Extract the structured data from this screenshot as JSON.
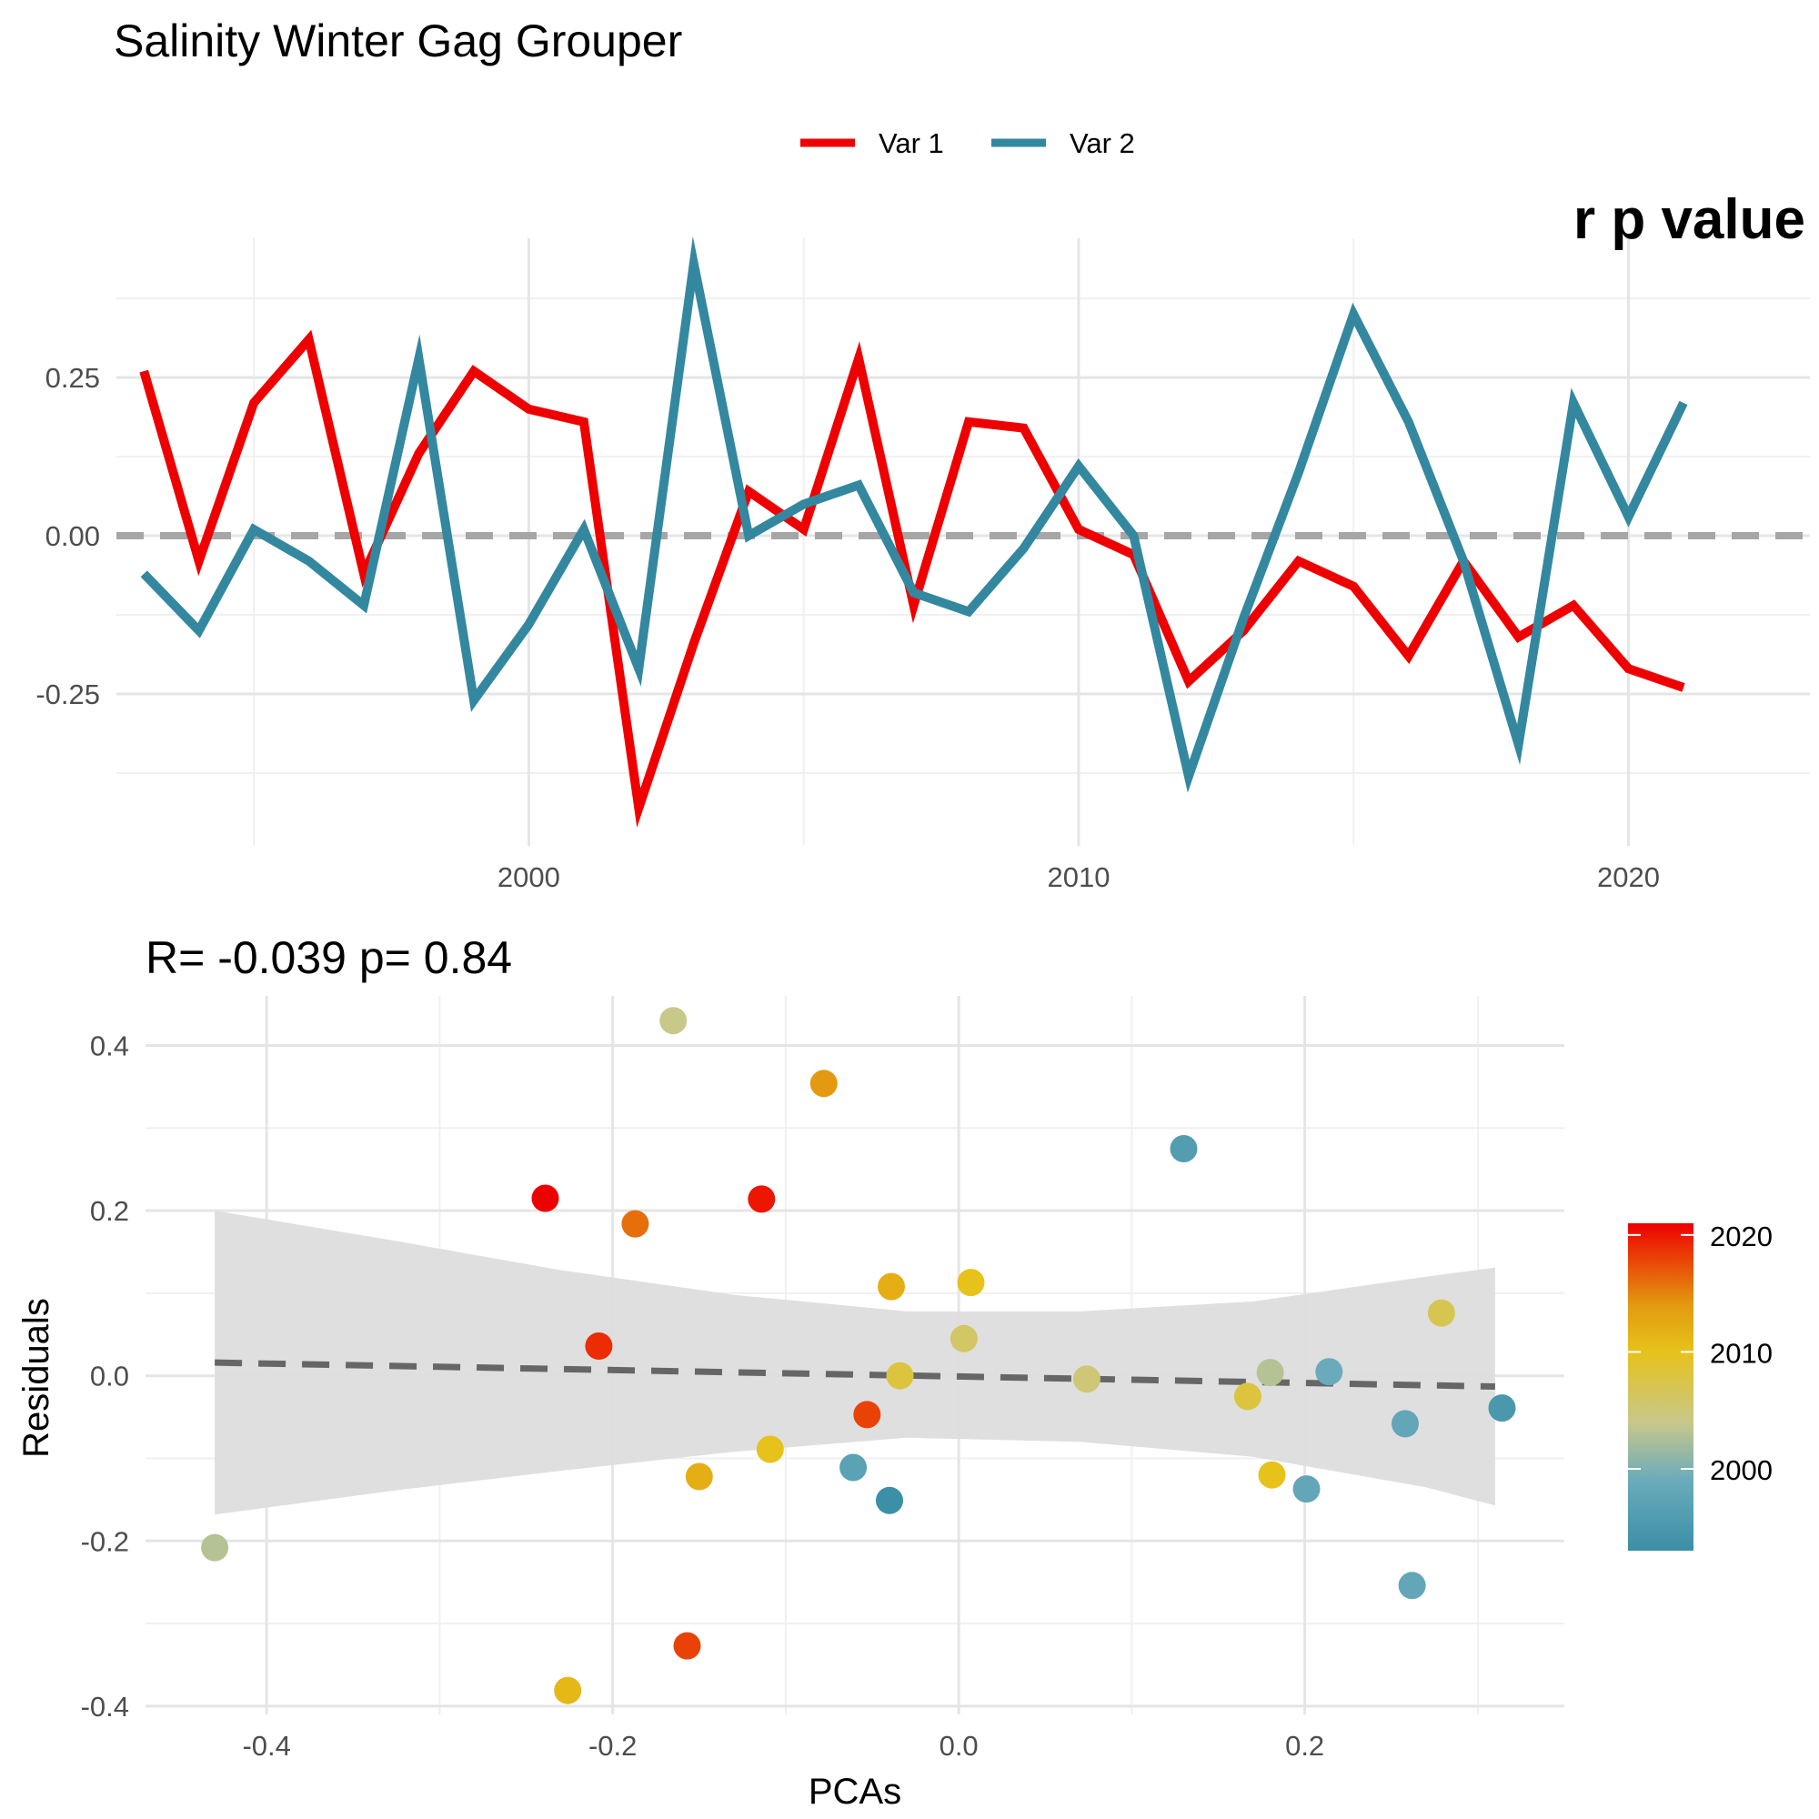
{
  "chart_data": [
    {
      "type": "line",
      "title": "Salinity Winter Gag Grouper",
      "corner_text": "r p value",
      "xlabel": "",
      "ylabel": "",
      "xlim": [
        1992.5,
        2023.3
      ],
      "ylim": [
        -0.49,
        0.47
      ],
      "x_ticks": [
        2000,
        2010,
        2020
      ],
      "x_tick_labels": [
        "2000",
        "2010",
        "2020"
      ],
      "y_ticks": [
        0.25,
        0.0,
        -0.25
      ],
      "y_tick_labels": [
        "0.25",
        "0.00",
        "-0.25"
      ],
      "grid": true,
      "legend_position": "top",
      "reference_line": {
        "y": 0,
        "style": "dashed",
        "color": "#a6a6a6"
      },
      "x": [
        1993,
        1994,
        1995,
        1996,
        1997,
        1998,
        1999,
        2000,
        2001,
        2002,
        2003,
        2004,
        2005,
        2006,
        2007,
        2008,
        2009,
        2010,
        2011,
        2012,
        2013,
        2014,
        2015,
        2016,
        2017,
        2018,
        2019,
        2020,
        2021
      ],
      "series": [
        {
          "name": "Var 1",
          "color": "#ee0000",
          "values": [
            0.26,
            -0.04,
            0.21,
            0.31,
            -0.06,
            0.13,
            0.26,
            0.2,
            0.18,
            -0.43,
            -0.17,
            0.07,
            0.01,
            0.28,
            -0.11,
            0.18,
            0.17,
            0.01,
            -0.03,
            -0.23,
            -0.15,
            -0.04,
            -0.08,
            -0.19,
            -0.04,
            -0.16,
            -0.11,
            -0.21,
            -0.24
          ]
        },
        {
          "name": "Var 2",
          "color": "#3388a0",
          "values": [
            -0.06,
            -0.15,
            0.01,
            -0.04,
            -0.11,
            0.28,
            -0.26,
            -0.14,
            0.01,
            -0.21,
            0.43,
            0.0,
            0.05,
            0.08,
            -0.09,
            -0.12,
            -0.02,
            0.11,
            0.0,
            -0.38,
            -0.13,
            0.1,
            0.35,
            0.18,
            -0.04,
            -0.33,
            0.21,
            0.03,
            0.21
          ]
        }
      ]
    },
    {
      "type": "scatter",
      "title": "R= -0.039  p= 0.84",
      "xlabel": "PCAs",
      "ylabel": "Residuals",
      "xlim": [
        -0.47,
        0.35
      ],
      "ylim": [
        -0.41,
        0.46
      ],
      "x_ticks": [
        -0.4,
        -0.2,
        0.0,
        0.2
      ],
      "x_tick_labels": [
        "-0.4",
        "-0.2",
        "0.0",
        "0.2"
      ],
      "y_ticks": [
        0.4,
        0.2,
        0.0,
        -0.2,
        -0.4
      ],
      "y_tick_labels": [
        "0.4",
        "0.2",
        "0.0",
        "-0.2",
        "-0.4"
      ],
      "grid": true,
      "fit_line": {
        "style": "dashed",
        "color": "#666666",
        "x": [
          -0.43,
          0.31
        ],
        "y": [
          0.016,
          -0.013
        ]
      },
      "confidence_band": {
        "color": "#dddddd",
        "x": [
          -0.43,
          -0.33,
          -0.23,
          -0.13,
          -0.03,
          0.07,
          0.17,
          0.27,
          0.31
        ],
        "upper": [
          0.2,
          0.165,
          0.128,
          0.098,
          0.078,
          0.078,
          0.09,
          0.12,
          0.131
        ],
        "lower": [
          -0.168,
          -0.14,
          -0.115,
          -0.092,
          -0.075,
          -0.08,
          -0.098,
          -0.135,
          -0.157
        ]
      },
      "colorbar": {
        "position": "right",
        "range": [
          1993,
          2021
        ],
        "ticks": [
          2000,
          2010,
          2020
        ],
        "tick_labels": [
          "2000",
          "2010",
          "2020"
        ],
        "stops": [
          {
            "value": 1993,
            "color": "#3b8fa6"
          },
          {
            "value": 1999,
            "color": "#6aabbb"
          },
          {
            "value": 2004,
            "color": "#c8c88a"
          },
          {
            "value": 2010,
            "color": "#e6c21a"
          },
          {
            "value": 2014,
            "color": "#e39a10"
          },
          {
            "value": 2021,
            "color": "#ee0000"
          }
        ]
      },
      "points": [
        {
          "x": -0.165,
          "y": 0.43,
          "year": 2004
        },
        {
          "x": -0.078,
          "y": 0.354,
          "year": 2014
        },
        {
          "x": 0.13,
          "y": 0.275,
          "year": 1996
        },
        {
          "x": -0.239,
          "y": 0.215,
          "year": 2021
        },
        {
          "x": -0.114,
          "y": 0.214,
          "year": 2020
        },
        {
          "x": -0.187,
          "y": 0.184,
          "year": 2016
        },
        {
          "x": -0.039,
          "y": 0.108,
          "year": 2012
        },
        {
          "x": 0.007,
          "y": 0.113,
          "year": 2010
        },
        {
          "x": 0.279,
          "y": 0.076,
          "year": 2007
        },
        {
          "x": 0.003,
          "y": 0.045,
          "year": 2006
        },
        {
          "x": -0.208,
          "y": 0.036,
          "year": 2019
        },
        {
          "x": 0.18,
          "y": 0.004,
          "year": 2003
        },
        {
          "x": 0.214,
          "y": 0.005,
          "year": 1999
        },
        {
          "x": -0.034,
          "y": 0.0,
          "year": 2008
        },
        {
          "x": 0.074,
          "y": -0.004,
          "year": 2005
        },
        {
          "x": 0.167,
          "y": -0.025,
          "year": 2008
        },
        {
          "x": 0.314,
          "y": -0.039,
          "year": 1995
        },
        {
          "x": -0.053,
          "y": -0.047,
          "year": 2018
        },
        {
          "x": 0.258,
          "y": -0.058,
          "year": 1998
        },
        {
          "x": -0.109,
          "y": -0.089,
          "year": 2010
        },
        {
          "x": -0.061,
          "y": -0.111,
          "year": 1997
        },
        {
          "x": 0.181,
          "y": -0.12,
          "year": 2010
        },
        {
          "x": -0.15,
          "y": -0.122,
          "year": 2012
        },
        {
          "x": 0.201,
          "y": -0.137,
          "year": 1998
        },
        {
          "x": -0.04,
          "y": -0.151,
          "year": 1993
        },
        {
          "x": -0.43,
          "y": -0.208,
          "year": 2003
        },
        {
          "x": 0.262,
          "y": -0.254,
          "year": 1998
        },
        {
          "x": -0.157,
          "y": -0.327,
          "year": 2018
        },
        {
          "x": -0.226,
          "y": -0.381,
          "year": 2011
        }
      ]
    }
  ]
}
